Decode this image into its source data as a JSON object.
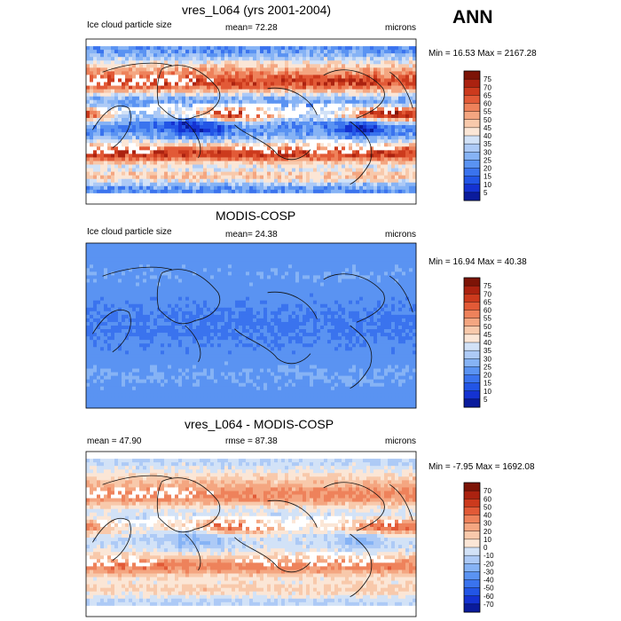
{
  "page_label": "ANN",
  "palettes": {
    "positive16": [
      "#0a1b9c",
      "#1432d2",
      "#2255e6",
      "#3a73ee",
      "#5a93f2",
      "#86b3f5",
      "#adcaf6",
      "#d2e2f7",
      "#fbe6d6",
      "#f8c9ab",
      "#f4a681",
      "#ee825b",
      "#e25a37",
      "#cc3a1d",
      "#ab2210",
      "#7d1407"
    ],
    "diff16": [
      "#0a1b9c",
      "#1432d2",
      "#2255e6",
      "#3a73ee",
      "#5a93f2",
      "#86b3f5",
      "#adcaf6",
      "#d2e2f7",
      "#fbe6d6",
      "#f8c9ab",
      "#f4a681",
      "#ee825b",
      "#e25a37",
      "#cc3a1d",
      "#ab2210",
      "#7d1407"
    ]
  },
  "panels": [
    {
      "title": "vres_L064 (yrs 2001-2004)",
      "left_label": "Ice cloud particle size",
      "center_label": "mean=  72.28",
      "right_label": "microns",
      "minmax": "Min =  16.53 Max = 2167.28",
      "field_type": "model",
      "colorbar_ticks": [
        "75",
        "70",
        "65",
        "60",
        "55",
        "50",
        "45",
        "40",
        "35",
        "30",
        "25",
        "20",
        "15",
        "10",
        "5"
      ]
    },
    {
      "title": "MODIS-COSP",
      "left_label": "Ice cloud particle size",
      "center_label": "mean=  24.38",
      "right_label": "microns",
      "minmax": "Min =  16.94 Max =  40.38",
      "field_type": "obs",
      "colorbar_ticks": [
        "75",
        "70",
        "65",
        "60",
        "55",
        "50",
        "45",
        "40",
        "35",
        "30",
        "25",
        "20",
        "15",
        "10",
        "5"
      ]
    },
    {
      "title": "vres_L064 - MODIS-COSP",
      "left_label": "mean =  47.90",
      "center_label": "rmse =  87.38",
      "right_label": "microns",
      "minmax": "Min =  -7.95 Max = 1692.08",
      "field_type": "diff",
      "colorbar_ticks": [
        "70",
        "60",
        "50",
        "40",
        "30",
        "20",
        "10",
        "0",
        "-10",
        "-20",
        "-30",
        "-40",
        "-50",
        "-60",
        "-70"
      ]
    }
  ],
  "chart_data": [
    {
      "type": "heatmap",
      "title": "vres_L064 (yrs 2001-2004)",
      "variable": "Ice cloud particle size",
      "units": "microns",
      "mean": 72.28,
      "min": 16.53,
      "max": 2167.28,
      "colorbar_levels": [
        5,
        10,
        15,
        20,
        25,
        30,
        35,
        40,
        45,
        50,
        55,
        60,
        65,
        70,
        75
      ]
    },
    {
      "type": "heatmap",
      "title": "MODIS-COSP",
      "variable": "Ice cloud particle size",
      "units": "microns",
      "mean": 24.38,
      "min": 16.94,
      "max": 40.38,
      "colorbar_levels": [
        5,
        10,
        15,
        20,
        25,
        30,
        35,
        40,
        45,
        50,
        55,
        60,
        65,
        70,
        75
      ]
    },
    {
      "type": "heatmap",
      "title": "vres_L064 - MODIS-COSP",
      "units": "microns",
      "mean": 47.9,
      "rmse": 87.38,
      "min": -7.95,
      "max": 1692.08,
      "colorbar_levels": [
        -70,
        -60,
        -50,
        -40,
        -30,
        -20,
        -10,
        0,
        10,
        20,
        30,
        40,
        50,
        60,
        70
      ]
    }
  ]
}
